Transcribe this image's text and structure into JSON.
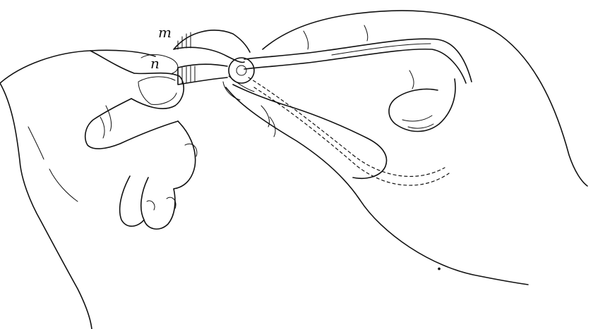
{
  "illustration": {
    "labels": {
      "m": "m",
      "n": "n"
    },
    "colors": {
      "ink": "#111111",
      "paper": "#ffffff"
    }
  }
}
